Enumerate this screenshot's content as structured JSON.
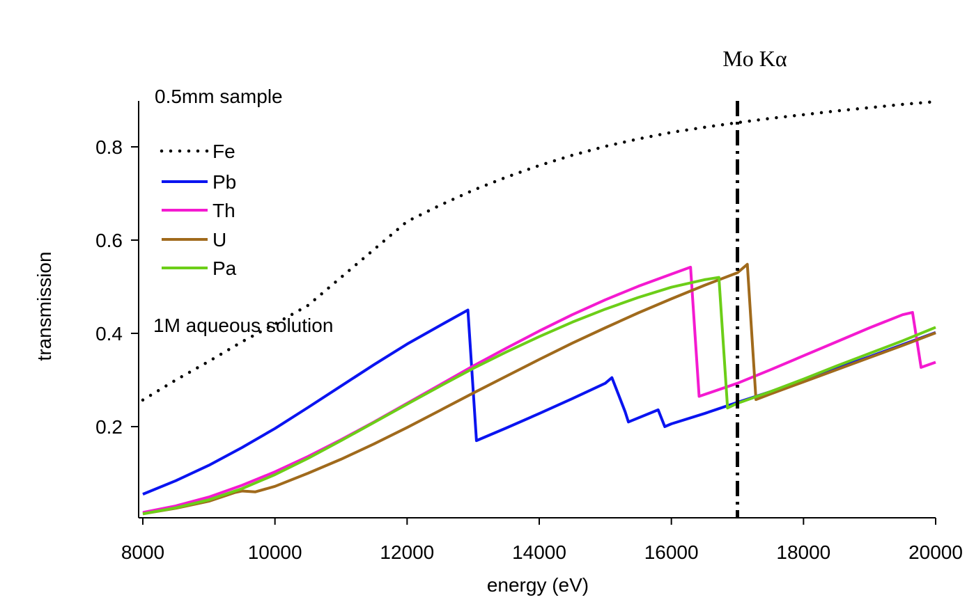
{
  "chart_data": {
    "type": "line",
    "xlabel": "energy (eV)",
    "ylabel": "transmission",
    "xlim": [
      8000,
      20000
    ],
    "ylim": [
      0.01,
      0.9
    ],
    "x_ticks": [
      8000,
      10000,
      12000,
      14000,
      16000,
      18000,
      20000
    ],
    "x_tick_labels": [
      "8000",
      "10000",
      "12000",
      "14000",
      "16000",
      "18000",
      "20000"
    ],
    "y_ticks": [
      0.2,
      0.4,
      0.6,
      0.8
    ],
    "y_tick_labels": [
      "0.2",
      "0.4",
      "0.6",
      "0.8"
    ],
    "grid": false,
    "legend_position": "top-left",
    "annotations": {
      "sample": "0.5mm sample",
      "solution": "1M aqueous solution"
    },
    "reference_line": {
      "label": "Mo Kα",
      "x": 17000,
      "style": "dash-dot",
      "color": "#000000"
    },
    "series": [
      {
        "name": "Fe",
        "color": "#000000",
        "style": "dotted",
        "points": [
          [
            8000,
            0.257
          ],
          [
            8500,
            0.3
          ],
          [
            9000,
            0.34
          ],
          [
            9500,
            0.382
          ],
          [
            10000,
            0.42
          ],
          [
            10500,
            0.46
          ],
          [
            11000,
            0.52
          ],
          [
            11500,
            0.58
          ],
          [
            12000,
            0.64
          ],
          [
            12500,
            0.675
          ],
          [
            13000,
            0.707
          ],
          [
            13500,
            0.735
          ],
          [
            14000,
            0.76
          ],
          [
            14500,
            0.782
          ],
          [
            15000,
            0.801
          ],
          [
            15500,
            0.817
          ],
          [
            16000,
            0.831
          ],
          [
            16500,
            0.842
          ],
          [
            17000,
            0.852
          ],
          [
            17500,
            0.861
          ],
          [
            18000,
            0.869
          ],
          [
            18500,
            0.877
          ],
          [
            19000,
            0.884
          ],
          [
            19500,
            0.891
          ],
          [
            20000,
            0.897
          ]
        ]
      },
      {
        "name": "Pb",
        "color": "#0a14f0",
        "style": "solid",
        "points": [
          [
            8000,
            0.055
          ],
          [
            8500,
            0.084
          ],
          [
            9000,
            0.117
          ],
          [
            9500,
            0.155
          ],
          [
            10000,
            0.196
          ],
          [
            10500,
            0.241
          ],
          [
            11000,
            0.287
          ],
          [
            11500,
            0.333
          ],
          [
            12000,
            0.377
          ],
          [
            12500,
            0.417
          ],
          [
            12920,
            0.45
          ],
          [
            13050,
            0.17
          ],
          [
            13500,
            0.197
          ],
          [
            14000,
            0.228
          ],
          [
            14500,
            0.26
          ],
          [
            15000,
            0.293
          ],
          [
            15100,
            0.305
          ],
          [
            15300,
            0.232
          ],
          [
            15350,
            0.21
          ],
          [
            15800,
            0.236
          ],
          [
            15900,
            0.2
          ],
          [
            16000,
            0.206
          ],
          [
            16500,
            0.228
          ],
          [
            17000,
            0.252
          ],
          [
            17500,
            0.275
          ],
          [
            18000,
            0.3
          ],
          [
            18500,
            0.325
          ],
          [
            19000,
            0.35
          ],
          [
            19500,
            0.376
          ],
          [
            20000,
            0.402
          ]
        ]
      },
      {
        "name": "Th",
        "color": "#f41ad0",
        "style": "solid",
        "points": [
          [
            8000,
            0.016
          ],
          [
            8500,
            0.03
          ],
          [
            9000,
            0.049
          ],
          [
            9500,
            0.074
          ],
          [
            10000,
            0.103
          ],
          [
            10500,
            0.136
          ],
          [
            11000,
            0.172
          ],
          [
            11500,
            0.21
          ],
          [
            12000,
            0.25
          ],
          [
            12500,
            0.29
          ],
          [
            13000,
            0.33
          ],
          [
            13500,
            0.368
          ],
          [
            14000,
            0.405
          ],
          [
            14500,
            0.44
          ],
          [
            15000,
            0.472
          ],
          [
            15500,
            0.501
          ],
          [
            16000,
            0.527
          ],
          [
            16290,
            0.542
          ],
          [
            16420,
            0.265
          ],
          [
            17000,
            0.293
          ],
          [
            17500,
            0.322
          ],
          [
            18000,
            0.352
          ],
          [
            18500,
            0.382
          ],
          [
            19000,
            0.412
          ],
          [
            19500,
            0.44
          ],
          [
            19650,
            0.445
          ],
          [
            19780,
            0.327
          ],
          [
            20000,
            0.338
          ]
        ]
      },
      {
        "name": "U",
        "color": "#a06a1c",
        "style": "solid",
        "points": [
          [
            8000,
            0.013
          ],
          [
            8500,
            0.025
          ],
          [
            9000,
            0.04
          ],
          [
            9400,
            0.059
          ],
          [
            9500,
            0.062
          ],
          [
            9700,
            0.06
          ],
          [
            10000,
            0.072
          ],
          [
            10500,
            0.1
          ],
          [
            11000,
            0.13
          ],
          [
            11500,
            0.163
          ],
          [
            12000,
            0.198
          ],
          [
            12500,
            0.235
          ],
          [
            13000,
            0.272
          ],
          [
            13500,
            0.308
          ],
          [
            14000,
            0.344
          ],
          [
            14500,
            0.379
          ],
          [
            15000,
            0.412
          ],
          [
            15500,
            0.444
          ],
          [
            16000,
            0.474
          ],
          [
            16500,
            0.503
          ],
          [
            17000,
            0.53
          ],
          [
            17150,
            0.548
          ],
          [
            17280,
            0.258
          ],
          [
            17500,
            0.27
          ],
          [
            18000,
            0.296
          ],
          [
            18500,
            0.322
          ],
          [
            19000,
            0.348
          ],
          [
            19500,
            0.374
          ],
          [
            20000,
            0.401
          ]
        ]
      },
      {
        "name": "Pa",
        "color": "#6cce18",
        "style": "solid",
        "points": [
          [
            8000,
            0.013
          ],
          [
            8500,
            0.026
          ],
          [
            9000,
            0.043
          ],
          [
            9500,
            0.067
          ],
          [
            10000,
            0.097
          ],
          [
            10500,
            0.132
          ],
          [
            11000,
            0.17
          ],
          [
            11500,
            0.209
          ],
          [
            12000,
            0.248
          ],
          [
            12500,
            0.287
          ],
          [
            13000,
            0.325
          ],
          [
            13500,
            0.36
          ],
          [
            14000,
            0.393
          ],
          [
            14500,
            0.424
          ],
          [
            15000,
            0.452
          ],
          [
            15500,
            0.477
          ],
          [
            16000,
            0.499
          ],
          [
            16500,
            0.515
          ],
          [
            16720,
            0.52
          ],
          [
            16850,
            0.24
          ],
          [
            17000,
            0.25
          ],
          [
            17500,
            0.275
          ],
          [
            18000,
            0.302
          ],
          [
            18500,
            0.33
          ],
          [
            19000,
            0.357
          ],
          [
            19500,
            0.384
          ],
          [
            20000,
            0.413
          ]
        ]
      }
    ]
  }
}
